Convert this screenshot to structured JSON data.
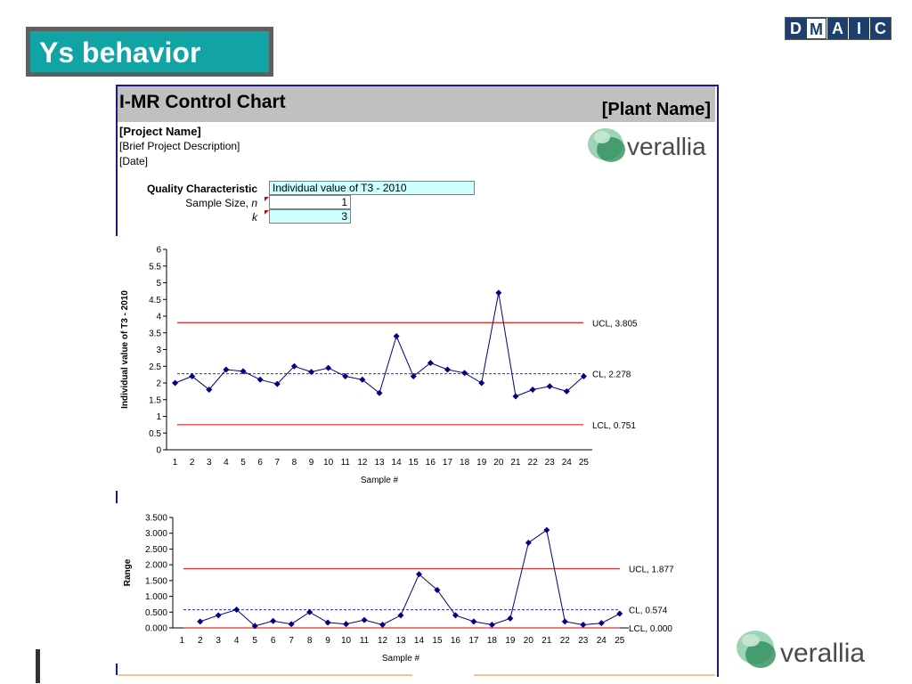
{
  "slide": {
    "title": "Ys behavior",
    "dmaic": [
      "D",
      "M",
      "A",
      "I",
      "C"
    ],
    "dmaic_active": 1
  },
  "sheet": {
    "chart_title": "I-MR Control Chart",
    "plant_name": "[Plant Name]",
    "project_name": "[Project Name]",
    "project_description": "[Brief Project Description]",
    "date": "[Date]",
    "quality_characteristic_label": "Quality Characteristic",
    "quality_characteristic_value": "Individual value of T3 - 2010",
    "sample_size_label": "Sample Size, ",
    "sample_size_var": "n",
    "sample_size_value": "1",
    "k_label": "k",
    "k_value": "3"
  },
  "logo": {
    "text": "verallia",
    "color": "#3a9b6b"
  },
  "colors": {
    "series": "#000080",
    "limit": "#e03030",
    "cl": "#2a2ad0",
    "accent": "#12a4a4"
  },
  "chart_data": [
    {
      "type": "line",
      "xlabel": "Sample #",
      "ylabel": "Individual value of T3 - 2010",
      "x": [
        1,
        2,
        3,
        4,
        5,
        6,
        7,
        8,
        9,
        10,
        11,
        12,
        13,
        14,
        15,
        16,
        17,
        18,
        19,
        20,
        21,
        22,
        23,
        24,
        25
      ],
      "values": [
        2.0,
        2.2,
        1.8,
        2.4,
        2.35,
        2.1,
        1.97,
        2.5,
        2.33,
        2.45,
        2.2,
        2.1,
        1.7,
        3.4,
        2.2,
        2.6,
        2.4,
        2.3,
        2.0,
        4.7,
        1.6,
        1.8,
        1.9,
        1.75,
        2.2
      ],
      "ylim": [
        0,
        6
      ],
      "yticks": [
        "0",
        "0.5",
        "1",
        "1.5",
        "2",
        "2.5",
        "3",
        "3.5",
        "4",
        "4.5",
        "5",
        "5.5",
        "6"
      ],
      "ytick_values": [
        0,
        0.5,
        1,
        1.5,
        2,
        2.5,
        3,
        3.5,
        4,
        4.5,
        5,
        5.5,
        6
      ],
      "ucl": 3.805,
      "cl": 2.278,
      "lcl": 0.751,
      "ucl_label": "UCL, 3.805",
      "cl_label": "CL, 2.278",
      "lcl_label": "LCL, 0.751",
      "grid": false
    },
    {
      "type": "line",
      "xlabel": "Sample #",
      "ylabel": "Range",
      "x": [
        1,
        2,
        3,
        4,
        5,
        6,
        7,
        8,
        9,
        10,
        11,
        12,
        13,
        14,
        15,
        16,
        17,
        18,
        19,
        20,
        21,
        22,
        23,
        24,
        25
      ],
      "values": [
        null,
        0.2,
        0.4,
        0.58,
        0.06,
        0.22,
        0.12,
        0.5,
        0.17,
        0.12,
        0.25,
        0.1,
        0.4,
        1.7,
        1.2,
        0.4,
        0.2,
        0.1,
        0.3,
        2.7,
        3.1,
        0.2,
        0.1,
        0.15,
        0.45
      ],
      "ylim": [
        0,
        3.5
      ],
      "yticks": [
        "0.000",
        "0.500",
        "1.000",
        "1.500",
        "2.000",
        "2.500",
        "3.000",
        "3.500"
      ],
      "ytick_values": [
        0,
        0.5,
        1,
        1.5,
        2,
        2.5,
        3,
        3.5
      ],
      "ucl": 1.877,
      "cl": 0.574,
      "lcl": 0.0,
      "ucl_label": "UCL, 1.877",
      "cl_label": "CL, 0.574",
      "lcl_label": "LCL, 0.000",
      "grid": false
    }
  ]
}
